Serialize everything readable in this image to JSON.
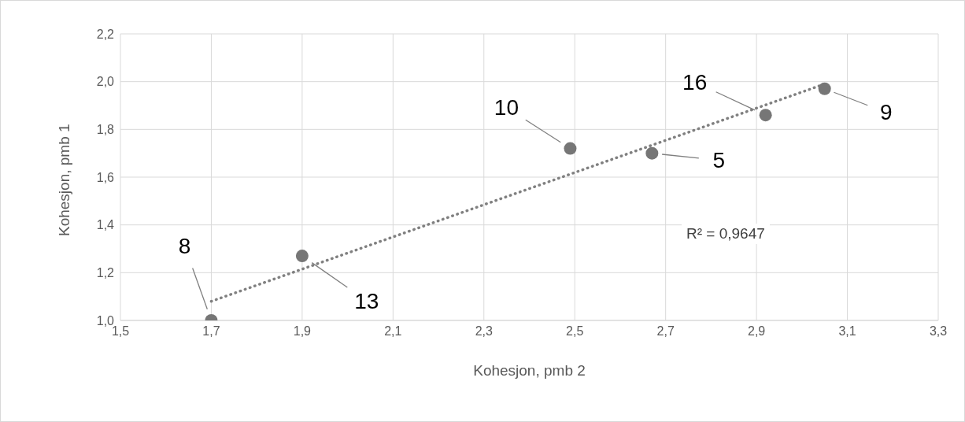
{
  "chart_data": {
    "type": "scatter",
    "xlabel": "Kohesjon, pmb 2",
    "ylabel": "Kohesjon, pmb 1",
    "xlim": [
      1.5,
      3.3
    ],
    "xticks": [
      {
        "value": 1.5,
        "label": "1,5"
      },
      {
        "value": 1.7,
        "label": "1,7"
      },
      {
        "value": 1.9,
        "label": "1,9"
      },
      {
        "value": 2.1,
        "label": "2,1"
      },
      {
        "value": 2.3,
        "label": "2,3"
      },
      {
        "value": 2.5,
        "label": "2,5"
      },
      {
        "value": 2.7,
        "label": "2,7"
      },
      {
        "value": 2.9,
        "label": "2,9"
      },
      {
        "value": 3.1,
        "label": "3,1"
      },
      {
        "value": 3.3,
        "label": "3,3"
      }
    ],
    "ylim": [
      1.0,
      2.2
    ],
    "yticks": [
      {
        "value": 1.0,
        "label": "1,0"
      },
      {
        "value": 1.2,
        "label": "1,2"
      },
      {
        "value": 1.4,
        "label": "1,4"
      },
      {
        "value": 1.6,
        "label": "1,6"
      },
      {
        "value": 1.8,
        "label": "1,8"
      },
      {
        "value": 2.0,
        "label": "2,0"
      },
      {
        "value": 2.2,
        "label": "2,2"
      }
    ],
    "grid": true,
    "series": [
      {
        "marker": "circle",
        "color": "#767676",
        "x": [
          1.7,
          1.9,
          2.49,
          2.67,
          2.92,
          3.05
        ],
        "values": [
          1.0,
          1.27,
          1.72,
          1.7,
          1.86,
          1.97
        ]
      },
      {
        "type": "line",
        "marker": "none",
        "color": "#808080",
        "line_style": "dotted",
        "x": [
          1.7,
          3.05
        ],
        "values": [
          1.08,
          1.99
        ]
      }
    ],
    "annotations": [
      {
        "text": "8",
        "x": 1.7,
        "y": 1.0
      },
      {
        "text": "13",
        "x": 1.9,
        "y": 1.27
      },
      {
        "text": "10",
        "x": 2.49,
        "y": 1.72
      },
      {
        "text": "5",
        "x": 2.67,
        "y": 1.7
      },
      {
        "text": "16",
        "x": 2.92,
        "y": 1.86
      },
      {
        "text": "9",
        "x": 3.05,
        "y": 1.97
      },
      "R² = 0,9647"
    ]
  }
}
